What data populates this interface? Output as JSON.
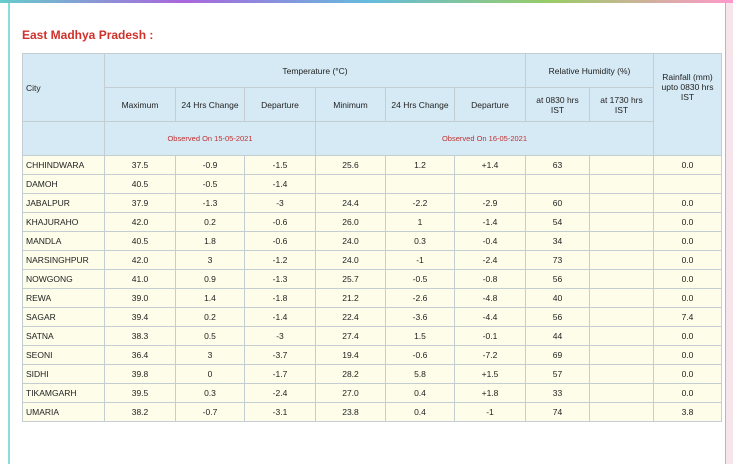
{
  "title": "East Madhya Pradesh :",
  "table": {
    "groups": {
      "temperature": "Temperature (°C)",
      "humidity": "Relative Humidity (%)",
      "rainfall": "Rainfall (mm) upto 0830 hrs IST"
    },
    "columns": [
      "City",
      "Maximum",
      "24 Hrs Change",
      "Departure",
      "Minimum",
      "24 Hrs Change",
      "Departure",
      "at 0830 hrs IST",
      "at 1730 hrs IST"
    ],
    "notes": [
      "Observed On 15-05-2021",
      "Observed On 16-05-2021"
    ],
    "rows": [
      [
        "CHHINDWARA",
        "37.5",
        "-0.9",
        "-1.5",
        "25.6",
        "1.2",
        "+1.4",
        "63",
        null,
        "0.0"
      ],
      [
        "DAMOH",
        "40.5",
        "-0.5",
        "-1.4",
        null,
        null,
        null,
        null,
        null,
        null
      ],
      [
        "JABALPUR",
        "37.9",
        "-1.3",
        "-3",
        "24.4",
        "-2.2",
        "-2.9",
        "60",
        null,
        "0.0"
      ],
      [
        "KHAJURAHO",
        "42.0",
        "0.2",
        "-0.6",
        "26.0",
        "1",
        "-1.4",
        "54",
        null,
        "0.0"
      ],
      [
        "MANDLA",
        "40.5",
        "1.8",
        "-0.6",
        "24.0",
        "0.3",
        "-0.4",
        "34",
        null,
        "0.0"
      ],
      [
        "NARSINGHPUR",
        "42.0",
        "3",
        "-1.2",
        "24.0",
        "-1",
        "-2.4",
        "73",
        null,
        "0.0"
      ],
      [
        "NOWGONG",
        "41.0",
        "0.9",
        "-1.3",
        "25.7",
        "-0.5",
        "-0.8",
        "56",
        null,
        "0.0"
      ],
      [
        "REWA",
        "39.0",
        "1.4",
        "-1.8",
        "21.2",
        "-2.6",
        "-4.8",
        "40",
        null,
        "0.0"
      ],
      [
        "SAGAR",
        "39.4",
        "0.2",
        "-1.4",
        "22.4",
        "-3.6",
        "-4.4",
        "56",
        null,
        "7.4"
      ],
      [
        "SATNA",
        "38.3",
        "0.5",
        "-3",
        "27.4",
        "1.5",
        "-0.1",
        "44",
        null,
        "0.0"
      ],
      [
        "SEONI",
        "36.4",
        "3",
        "-3.7",
        "19.4",
        "-0.6",
        "-7.2",
        "69",
        null,
        "0.0"
      ],
      [
        "SIDHI",
        "39.8",
        "0",
        "-1.7",
        "28.2",
        "5.8",
        "+1.5",
        "57",
        null,
        "0.0"
      ],
      [
        "TIKAMGARH",
        "39.5",
        "0.3",
        "-2.4",
        "27.0",
        "0.4",
        "+1.8",
        "33",
        null,
        "0.0"
      ],
      [
        "UMARIA",
        "38.2",
        "-0.7",
        "-3.1",
        "23.8",
        "0.4",
        "-1",
        "74",
        null,
        "3.8"
      ]
    ]
  }
}
